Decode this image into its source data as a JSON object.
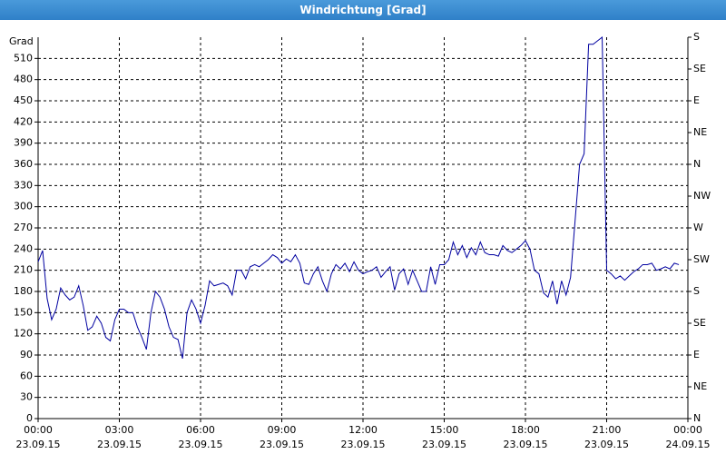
{
  "chart_data": {
    "type": "line",
    "title": "Windrichtung [Grad]",
    "y_label": "Grad",
    "color": "#0000a0",
    "grid": true,
    "x": [
      0,
      10,
      20,
      30,
      40,
      50,
      60,
      70,
      80,
      90,
      100,
      110,
      120,
      130,
      140,
      150,
      160,
      170,
      180,
      190,
      200,
      210,
      220,
      230,
      240,
      250,
      260,
      270,
      280,
      290,
      300,
      310,
      320,
      330,
      340,
      350,
      360,
      370,
      380,
      390,
      400,
      410,
      420,
      430,
      440,
      450,
      460,
      470,
      480,
      490,
      500,
      510,
      520,
      530,
      540,
      550,
      560,
      570,
      580,
      590,
      600,
      610,
      620,
      630,
      640,
      650,
      660,
      670,
      680,
      690,
      700,
      710,
      720,
      730,
      740,
      750,
      760,
      770,
      780,
      790,
      800,
      810,
      820,
      830,
      840,
      850,
      860,
      870,
      880,
      890,
      900,
      910,
      920,
      930,
      940,
      950,
      960,
      970,
      980,
      990,
      1000,
      1010,
      1020,
      1030,
      1040,
      1050,
      1060,
      1070,
      1080,
      1090,
      1100,
      1110,
      1120,
      1130,
      1140,
      1150,
      1160,
      1170,
      1180,
      1190,
      1200,
      1210,
      1220,
      1230,
      1240,
      1250,
      1260,
      1270,
      1280,
      1290,
      1300,
      1310,
      1320,
      1330,
      1340,
      1350,
      1360,
      1370,
      1380,
      1390,
      1400,
      1410,
      1420
    ],
    "values": [
      222,
      238,
      170,
      140,
      155,
      185,
      175,
      168,
      172,
      188,
      160,
      125,
      130,
      145,
      135,
      115,
      110,
      140,
      155,
      155,
      150,
      150,
      130,
      115,
      98,
      150,
      180,
      172,
      155,
      130,
      115,
      112,
      85,
      150,
      168,
      155,
      135,
      160,
      195,
      188,
      190,
      192,
      188,
      175,
      210,
      210,
      198,
      215,
      218,
      215,
      220,
      225,
      232,
      228,
      220,
      226,
      222,
      232,
      220,
      192,
      190,
      205,
      215,
      195,
      180,
      205,
      218,
      212,
      220,
      208,
      222,
      210,
      205,
      208,
      210,
      215,
      200,
      208,
      215,
      182,
      205,
      212,
      190,
      210,
      195,
      180,
      180,
      215,
      190,
      218,
      218,
      225,
      250,
      232,
      245,
      228,
      242,
      232,
      250,
      235,
      232,
      232,
      230,
      245,
      238,
      235,
      240,
      245,
      252,
      240,
      210,
      205,
      178,
      172,
      195,
      162,
      195,
      175,
      200,
      280,
      360,
      375,
      530,
      530,
      535,
      540,
      210,
      205,
      198,
      202,
      196,
      202,
      208,
      212,
      218,
      218,
      220,
      210,
      212,
      215,
      212,
      220,
      218
    ],
    "xlim": [
      0,
      1440
    ],
    "xticks": [
      {
        "value": 0,
        "label": "00:00\n23.09.15"
      },
      {
        "value": 180,
        "label": "03:00\n23.09.15"
      },
      {
        "value": 360,
        "label": "06:00\n23.09.15"
      },
      {
        "value": 540,
        "label": "09:00\n23.09.15"
      },
      {
        "value": 720,
        "label": "12:00\n23.09.15"
      },
      {
        "value": 900,
        "label": "15:00\n23.09.15"
      },
      {
        "value": 1080,
        "label": "18:00\n23.09.15"
      },
      {
        "value": 1260,
        "label": "21:00\n23.09.15"
      },
      {
        "value": 1440,
        "label": "00:00\n24.09.15"
      }
    ],
    "ylim": [
      0,
      540
    ],
    "yticks": [
      0,
      30,
      60,
      90,
      120,
      150,
      180,
      210,
      240,
      270,
      300,
      330,
      360,
      390,
      420,
      450,
      480,
      510
    ],
    "y2lim": [
      0,
      540
    ],
    "y2ticks": [
      {
        "value": 0,
        "label": "N"
      },
      {
        "value": 45,
        "label": "NE"
      },
      {
        "value": 90,
        "label": "E"
      },
      {
        "value": 135,
        "label": "SE"
      },
      {
        "value": 180,
        "label": "S"
      },
      {
        "value": 225,
        "label": "SW"
      },
      {
        "value": 270,
        "label": "W"
      },
      {
        "value": 315,
        "label": "NW"
      },
      {
        "value": 360,
        "label": "N"
      },
      {
        "value": 405,
        "label": "NE"
      },
      {
        "value": 450,
        "label": "E"
      },
      {
        "value": 495,
        "label": "SE"
      },
      {
        "value": 540,
        "label": "S"
      }
    ]
  }
}
